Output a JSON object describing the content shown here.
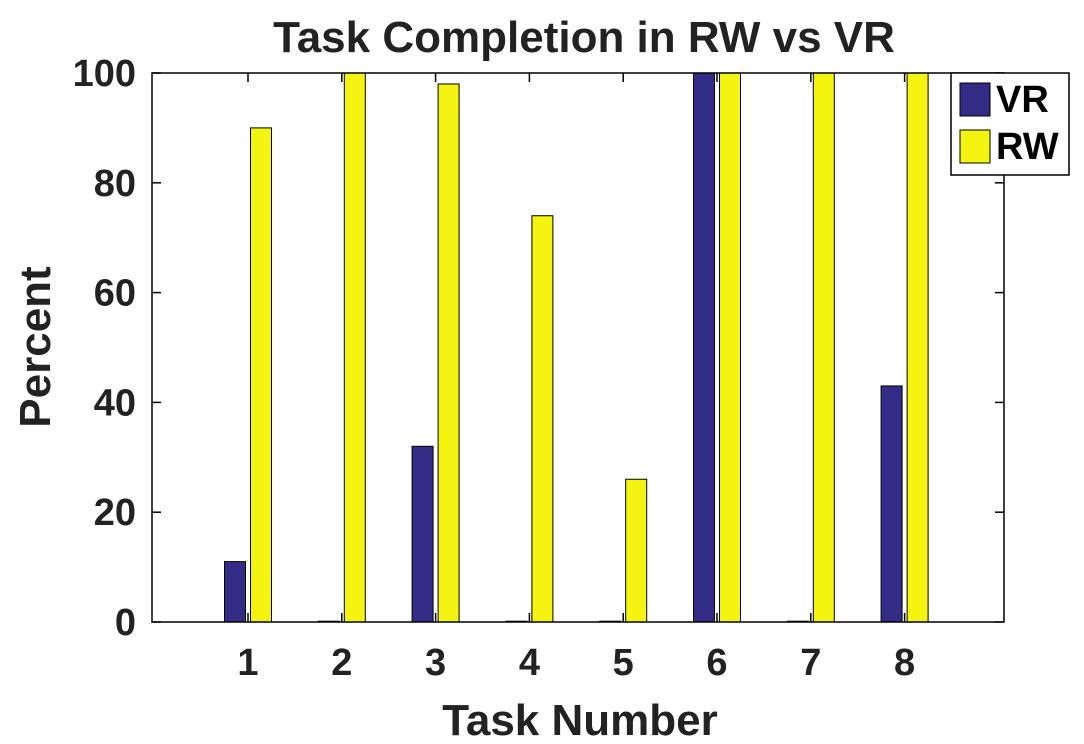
{
  "chart_data": {
    "type": "bar",
    "title": "Task Completion in RW vs VR",
    "xlabel": "Task Number",
    "ylabel": "Percent",
    "categories": [
      "1",
      "2",
      "3",
      "4",
      "5",
      "6",
      "7",
      "8"
    ],
    "series": [
      {
        "name": "VR",
        "color": "#332c86",
        "values": [
          11,
          0,
          32,
          0,
          0,
          100,
          0,
          43
        ]
      },
      {
        "name": "RW",
        "color": "#f4f410",
        "values": [
          90,
          100,
          98,
          74,
          26,
          100,
          100,
          100
        ]
      }
    ],
    "ylim": [
      0,
      100
    ],
    "yticks": [
      "0",
      "20",
      "40",
      "60",
      "80",
      "100"
    ],
    "grid": false,
    "legend_position": "top-right"
  }
}
